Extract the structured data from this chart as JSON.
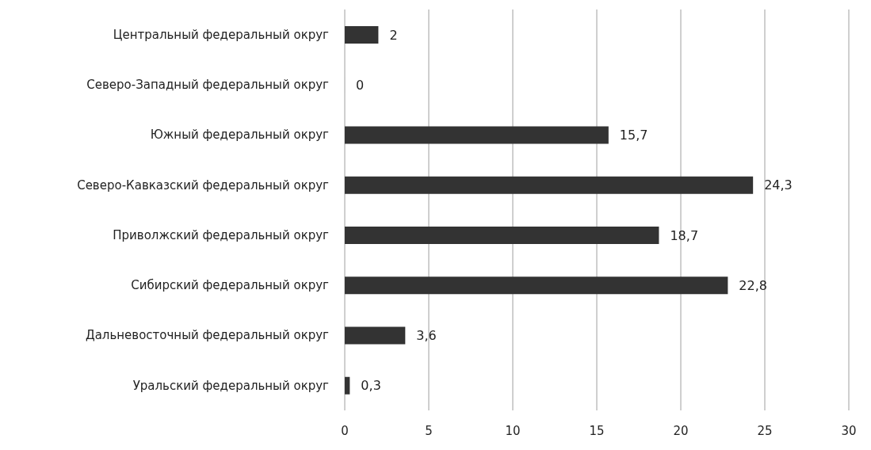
{
  "chart_data": {
    "type": "bar",
    "orientation": "horizontal",
    "categories": [
      "Центральный федеральный округ",
      "Северо-Западный федеральный округ",
      "Южный федеральный округ",
      "Северо-Кавказский федеральный округ",
      "Приволжский федеральный округ",
      "Сибирский федеральный округ",
      "Дальневосточный федеральный округ",
      "Уральский федеральный округ"
    ],
    "values": [
      2,
      0,
      15.7,
      24.3,
      18.7,
      22.8,
      3.6,
      0.3
    ],
    "value_labels": [
      "2",
      "0",
      "15,7",
      "24,3",
      "18,7",
      "22,8",
      "3,6",
      "0,3"
    ],
    "color": "#333333",
    "xlim": [
      0,
      30
    ],
    "xticks": [
      0,
      5,
      10,
      15,
      20,
      25,
      30
    ],
    "grid": "x"
  }
}
